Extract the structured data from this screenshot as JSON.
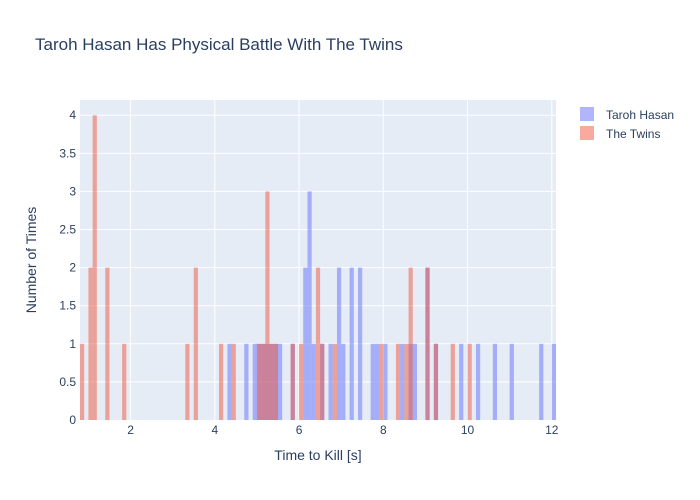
{
  "chart_data": {
    "type": "histogram",
    "title": "Taroh Hasan Has Physical Battle With The Twins",
    "xlabel": "Time to Kill [s]",
    "ylabel": "Number of Times",
    "xlim": [
      0.8,
      12.1
    ],
    "ylim": [
      0,
      4.2
    ],
    "bin_width": 0.1,
    "xticks": [
      2,
      4,
      6,
      8,
      10,
      12
    ],
    "yticks": [
      0,
      0.5,
      1,
      1.5,
      2,
      2.5,
      3,
      3.5,
      4
    ],
    "grid": true,
    "legend_position": "top-right",
    "series": [
      {
        "name": "Taroh Hasan",
        "color": "#636efa",
        "opacity": 0.5,
        "bins": [
          {
            "x": 4.3,
            "y": 1
          },
          {
            "x": 4.7,
            "y": 1
          },
          {
            "x": 4.9,
            "y": 1
          },
          {
            "x": 5.0,
            "y": 1
          },
          {
            "x": 5.1,
            "y": 1
          },
          {
            "x": 5.2,
            "y": 1
          },
          {
            "x": 5.3,
            "y": 1
          },
          {
            "x": 5.4,
            "y": 1
          },
          {
            "x": 5.5,
            "y": 1
          },
          {
            "x": 5.8,
            "y": 1
          },
          {
            "x": 6.1,
            "y": 2
          },
          {
            "x": 6.2,
            "y": 3
          },
          {
            "x": 6.3,
            "y": 1
          },
          {
            "x": 6.5,
            "y": 1
          },
          {
            "x": 6.7,
            "y": 1
          },
          {
            "x": 6.9,
            "y": 2
          },
          {
            "x": 7.0,
            "y": 1
          },
          {
            "x": 7.2,
            "y": 2
          },
          {
            "x": 7.4,
            "y": 2
          },
          {
            "x": 7.7,
            "y": 1
          },
          {
            "x": 7.8,
            "y": 1
          },
          {
            "x": 8.0,
            "y": 1
          },
          {
            "x": 8.4,
            "y": 1
          },
          {
            "x": 8.6,
            "y": 1
          },
          {
            "x": 8.7,
            "y": 1
          },
          {
            "x": 9.0,
            "y": 2
          },
          {
            "x": 9.2,
            "y": 1
          },
          {
            "x": 9.8,
            "y": 1
          },
          {
            "x": 10.2,
            "y": 1
          },
          {
            "x": 10.6,
            "y": 1
          },
          {
            "x": 11.0,
            "y": 1
          },
          {
            "x": 11.7,
            "y": 1
          },
          {
            "x": 12.0,
            "y": 1
          }
        ]
      },
      {
        "name": "The Twins",
        "color": "#ef553b",
        "opacity": 0.5,
        "bins": [
          {
            "x": 0.8,
            "y": 1
          },
          {
            "x": 1.0,
            "y": 2
          },
          {
            "x": 1.1,
            "y": 4
          },
          {
            "x": 1.4,
            "y": 2
          },
          {
            "x": 1.8,
            "y": 1
          },
          {
            "x": 3.3,
            "y": 1
          },
          {
            "x": 3.5,
            "y": 2
          },
          {
            "x": 4.1,
            "y": 1
          },
          {
            "x": 4.4,
            "y": 1
          },
          {
            "x": 5.0,
            "y": 1
          },
          {
            "x": 5.1,
            "y": 1
          },
          {
            "x": 5.2,
            "y": 3
          },
          {
            "x": 5.3,
            "y": 1
          },
          {
            "x": 5.4,
            "y": 1
          },
          {
            "x": 5.8,
            "y": 1
          },
          {
            "x": 6.0,
            "y": 1
          },
          {
            "x": 6.4,
            "y": 2
          },
          {
            "x": 6.5,
            "y": 1
          },
          {
            "x": 6.8,
            "y": 1
          },
          {
            "x": 7.9,
            "y": 1
          },
          {
            "x": 8.3,
            "y": 1
          },
          {
            "x": 8.5,
            "y": 1
          },
          {
            "x": 8.6,
            "y": 2
          },
          {
            "x": 9.0,
            "y": 2
          },
          {
            "x": 9.2,
            "y": 1
          },
          {
            "x": 9.6,
            "y": 1
          },
          {
            "x": 10.0,
            "y": 1
          }
        ]
      }
    ]
  }
}
